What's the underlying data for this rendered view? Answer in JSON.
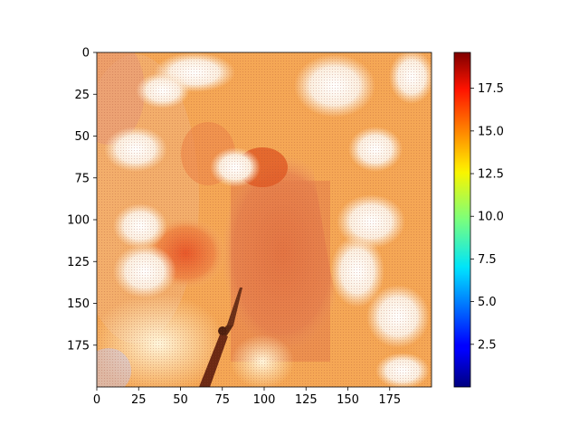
{
  "chart_data": {
    "type": "heatmap",
    "title": "",
    "xlabel": "",
    "ylabel": "",
    "x_range": [
      0,
      200
    ],
    "y_range": [
      0,
      200
    ],
    "y_inverted": true,
    "x_ticks": [
      "0",
      "25",
      "50",
      "75",
      "100",
      "125",
      "150",
      "175"
    ],
    "y_ticks": [
      "0",
      "25",
      "50",
      "75",
      "100",
      "125",
      "150",
      "175"
    ],
    "colorbar": {
      "colormap": "jet",
      "range": [
        0,
        19.6
      ],
      "ticks": [
        "2.5",
        "5.0",
        "7.5",
        "10.0",
        "12.5",
        "15.0",
        "17.5"
      ]
    },
    "grid": false,
    "description_regions": [
      {
        "name": "upper-left cloud blob",
        "level": 15.5
      },
      {
        "name": "central tower region",
        "level": 16.5
      },
      {
        "name": "right cloud band",
        "level": 15.0
      },
      {
        "name": "lower-left bright sky",
        "level": 14.0
      }
    ]
  },
  "colors": {
    "background": "#ffffff",
    "axis": "#000000",
    "heat_low": "#00007f",
    "heat_high": "#7f0000"
  }
}
